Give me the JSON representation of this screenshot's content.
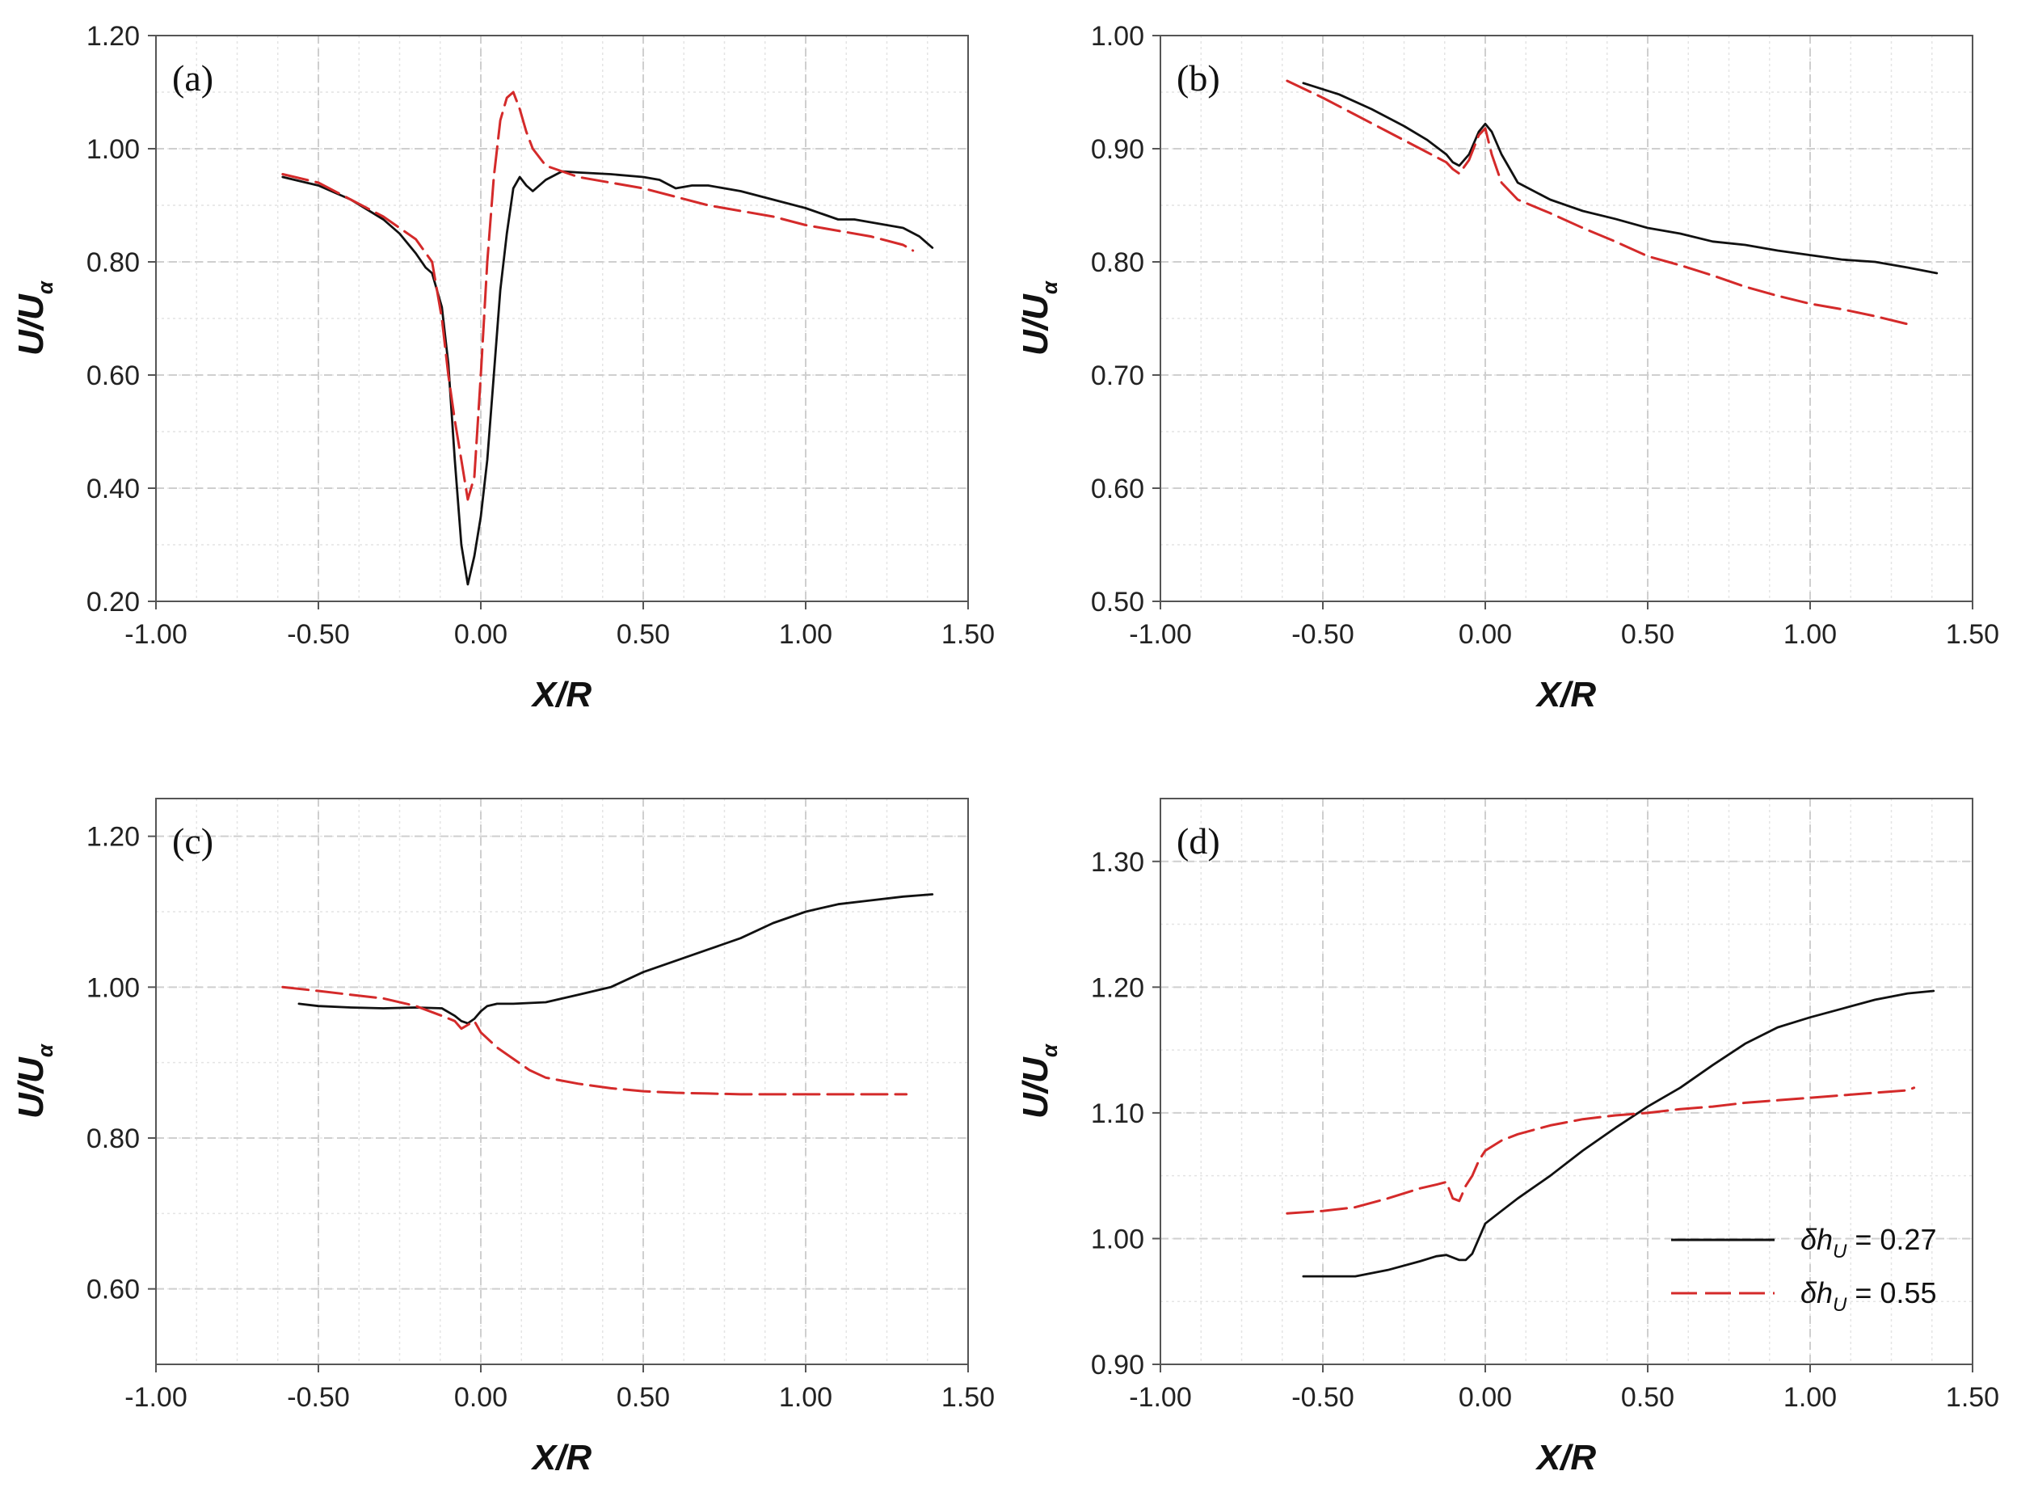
{
  "colors": {
    "series1": "#111111",
    "series2": "#d42a2a",
    "grid": "#cfcfcf",
    "axis": "#555555"
  },
  "legend": {
    "items": [
      {
        "symbol": "δh",
        "sub": "U",
        "text": "= 0.27"
      },
      {
        "symbol": "δh",
        "sub": "U",
        "text": "= 0.55"
      }
    ]
  },
  "chart_data": [
    {
      "type": "line",
      "panel_label": "(a)",
      "xlabel": "X/R",
      "ylabel": "U/U",
      "ylabel_sub": "α",
      "xlim": [
        -1.0,
        1.5
      ],
      "ylim": [
        0.2,
        1.2
      ],
      "xticks": [
        "-1.00",
        "-0.50",
        "0.00",
        "0.50",
        "1.00",
        "1.50"
      ],
      "yticks": [
        "0.20",
        "0.40",
        "0.60",
        "0.80",
        "1.00",
        "1.20"
      ],
      "grid": true,
      "series": [
        {
          "name": "δhU = 0.27",
          "x": [
            -0.61,
            -0.5,
            -0.4,
            -0.3,
            -0.25,
            -0.2,
            -0.17,
            -0.15,
            -0.12,
            -0.1,
            -0.08,
            -0.06,
            -0.04,
            -0.02,
            0.0,
            0.02,
            0.04,
            0.06,
            0.08,
            0.1,
            0.12,
            0.14,
            0.16,
            0.2,
            0.25,
            0.3,
            0.4,
            0.5,
            0.55,
            0.6,
            0.65,
            0.7,
            0.8,
            0.9,
            1.0,
            1.05,
            1.1,
            1.15,
            1.2,
            1.3,
            1.35,
            1.39
          ],
          "values": [
            0.95,
            0.935,
            0.91,
            0.875,
            0.85,
            0.815,
            0.79,
            0.78,
            0.72,
            0.62,
            0.45,
            0.3,
            0.23,
            0.28,
            0.35,
            0.45,
            0.6,
            0.75,
            0.85,
            0.93,
            0.95,
            0.935,
            0.925,
            0.945,
            0.96,
            0.958,
            0.955,
            0.95,
            0.945,
            0.93,
            0.935,
            0.935,
            0.925,
            0.91,
            0.895,
            0.885,
            0.875,
            0.875,
            0.87,
            0.86,
            0.845,
            0.825
          ]
        },
        {
          "name": "δhU = 0.55",
          "x": [
            -0.61,
            -0.5,
            -0.4,
            -0.3,
            -0.25,
            -0.2,
            -0.15,
            -0.12,
            -0.1,
            -0.08,
            -0.06,
            -0.04,
            -0.02,
            0.0,
            0.02,
            0.04,
            0.06,
            0.08,
            0.1,
            0.12,
            0.14,
            0.16,
            0.2,
            0.25,
            0.3,
            0.4,
            0.5,
            0.6,
            0.7,
            0.8,
            0.9,
            1.0,
            1.1,
            1.2,
            1.3,
            1.33
          ],
          "values": [
            0.955,
            0.94,
            0.91,
            0.88,
            0.86,
            0.84,
            0.8,
            0.7,
            0.6,
            0.52,
            0.45,
            0.38,
            0.42,
            0.6,
            0.8,
            0.95,
            1.05,
            1.09,
            1.1,
            1.07,
            1.03,
            1.0,
            0.97,
            0.96,
            0.95,
            0.94,
            0.93,
            0.915,
            0.9,
            0.89,
            0.88,
            0.865,
            0.855,
            0.845,
            0.83,
            0.82
          ]
        }
      ]
    },
    {
      "type": "line",
      "panel_label": "(b)",
      "xlabel": "X/R",
      "ylabel": "U/U",
      "ylabel_sub": "α",
      "xlim": [
        -1.0,
        1.5
      ],
      "ylim": [
        0.5,
        1.0
      ],
      "xticks": [
        "-1.00",
        "-0.50",
        "0.00",
        "0.50",
        "1.00",
        "1.50"
      ],
      "yticks": [
        "0.50",
        "0.60",
        "0.70",
        "0.80",
        "0.90",
        "1.00"
      ],
      "grid": true,
      "series": [
        {
          "name": "δhU = 0.27",
          "x": [
            -0.56,
            -0.45,
            -0.35,
            -0.25,
            -0.18,
            -0.12,
            -0.1,
            -0.08,
            -0.05,
            -0.02,
            0.0,
            0.02,
            0.05,
            0.08,
            0.1,
            0.2,
            0.3,
            0.4,
            0.5,
            0.6,
            0.7,
            0.8,
            0.9,
            1.0,
            1.1,
            1.2,
            1.3,
            1.39
          ],
          "values": [
            0.958,
            0.948,
            0.935,
            0.92,
            0.908,
            0.895,
            0.888,
            0.885,
            0.895,
            0.915,
            0.922,
            0.915,
            0.895,
            0.88,
            0.87,
            0.855,
            0.845,
            0.838,
            0.83,
            0.825,
            0.818,
            0.815,
            0.81,
            0.806,
            0.802,
            0.8,
            0.795,
            0.79
          ]
        },
        {
          "name": "δhU = 0.55",
          "x": [
            -0.61,
            -0.5,
            -0.4,
            -0.3,
            -0.2,
            -0.12,
            -0.1,
            -0.08,
            -0.05,
            -0.02,
            0.0,
            0.02,
            0.05,
            0.1,
            0.2,
            0.3,
            0.4,
            0.5,
            0.6,
            0.7,
            0.8,
            0.9,
            1.0,
            1.1,
            1.2,
            1.3,
            1.32
          ],
          "values": [
            0.96,
            0.945,
            0.93,
            0.915,
            0.9,
            0.888,
            0.882,
            0.878,
            0.89,
            0.912,
            0.918,
            0.895,
            0.87,
            0.855,
            0.843,
            0.83,
            0.818,
            0.805,
            0.797,
            0.788,
            0.778,
            0.77,
            0.763,
            0.758,
            0.752,
            0.745,
            0.745
          ]
        }
      ]
    },
    {
      "type": "line",
      "panel_label": "(c)",
      "xlabel": "X/R",
      "ylabel": "U/U",
      "ylabel_sub": "α",
      "xlim": [
        -1.0,
        1.5
      ],
      "ylim": [
        0.5,
        1.25
      ],
      "xticks": [
        "-1.00",
        "-0.50",
        "0.00",
        "0.50",
        "1.00",
        "1.50"
      ],
      "yticks": [
        "0.60",
        "0.80",
        "1.00",
        "1.20"
      ],
      "grid": true,
      "series": [
        {
          "name": "δhU = 0.27",
          "x": [
            -0.56,
            -0.5,
            -0.4,
            -0.3,
            -0.2,
            -0.12,
            -0.08,
            -0.06,
            -0.04,
            -0.02,
            0.0,
            0.02,
            0.05,
            0.1,
            0.2,
            0.3,
            0.4,
            0.5,
            0.6,
            0.7,
            0.8,
            0.9,
            1.0,
            1.1,
            1.2,
            1.3,
            1.39
          ],
          "values": [
            0.978,
            0.975,
            0.973,
            0.972,
            0.973,
            0.972,
            0.962,
            0.955,
            0.952,
            0.958,
            0.968,
            0.975,
            0.978,
            0.978,
            0.98,
            0.99,
            1.0,
            1.02,
            1.035,
            1.05,
            1.065,
            1.085,
            1.1,
            1.11,
            1.115,
            1.12,
            1.123
          ]
        },
        {
          "name": "δhU = 0.55",
          "x": [
            -0.61,
            -0.5,
            -0.4,
            -0.3,
            -0.2,
            -0.12,
            -0.08,
            -0.06,
            -0.04,
            -0.02,
            0.0,
            0.05,
            0.1,
            0.15,
            0.2,
            0.3,
            0.4,
            0.5,
            0.6,
            0.7,
            0.8,
            0.9,
            1.0,
            1.1,
            1.2,
            1.31
          ],
          "values": [
            1.0,
            0.995,
            0.99,
            0.985,
            0.975,
            0.962,
            0.955,
            0.945,
            0.95,
            0.955,
            0.94,
            0.92,
            0.905,
            0.89,
            0.88,
            0.872,
            0.866,
            0.862,
            0.86,
            0.859,
            0.858,
            0.858,
            0.858,
            0.858,
            0.858,
            0.858
          ]
        }
      ]
    },
    {
      "type": "line",
      "panel_label": "(d)",
      "xlabel": "X/R",
      "ylabel": "U/U",
      "ylabel_sub": "α",
      "xlim": [
        -1.0,
        1.5
      ],
      "ylim": [
        0.9,
        1.35
      ],
      "xticks": [
        "-1.00",
        "-0.50",
        "0.00",
        "0.50",
        "1.00",
        "1.50"
      ],
      "yticks": [
        "0.90",
        "1.00",
        "1.10",
        "1.20",
        "1.30"
      ],
      "grid": true,
      "legend_position": "bottom-right",
      "series": [
        {
          "name": "δhU = 0.27",
          "x": [
            -0.56,
            -0.5,
            -0.4,
            -0.3,
            -0.2,
            -0.15,
            -0.12,
            -0.1,
            -0.08,
            -0.06,
            -0.04,
            -0.02,
            0.0,
            0.05,
            0.1,
            0.2,
            0.3,
            0.4,
            0.5,
            0.6,
            0.7,
            0.8,
            0.9,
            1.0,
            1.1,
            1.2,
            1.3,
            1.38
          ],
          "values": [
            0.97,
            0.97,
            0.97,
            0.975,
            0.982,
            0.986,
            0.987,
            0.985,
            0.983,
            0.983,
            0.988,
            1.0,
            1.012,
            1.022,
            1.032,
            1.05,
            1.07,
            1.088,
            1.105,
            1.12,
            1.138,
            1.155,
            1.168,
            1.176,
            1.183,
            1.19,
            1.195,
            1.197
          ]
        },
        {
          "name": "δhU = 0.55",
          "x": [
            -0.61,
            -0.5,
            -0.4,
            -0.3,
            -0.2,
            -0.15,
            -0.12,
            -0.1,
            -0.08,
            -0.06,
            -0.04,
            -0.02,
            0.0,
            0.05,
            0.1,
            0.2,
            0.3,
            0.4,
            0.5,
            0.6,
            0.7,
            0.8,
            0.9,
            1.0,
            1.1,
            1.2,
            1.3,
            1.32
          ],
          "values": [
            1.02,
            1.022,
            1.025,
            1.032,
            1.04,
            1.043,
            1.045,
            1.032,
            1.03,
            1.042,
            1.05,
            1.062,
            1.07,
            1.078,
            1.083,
            1.09,
            1.095,
            1.098,
            1.1,
            1.103,
            1.105,
            1.108,
            1.11,
            1.112,
            1.114,
            1.116,
            1.118,
            1.12
          ]
        }
      ]
    }
  ]
}
